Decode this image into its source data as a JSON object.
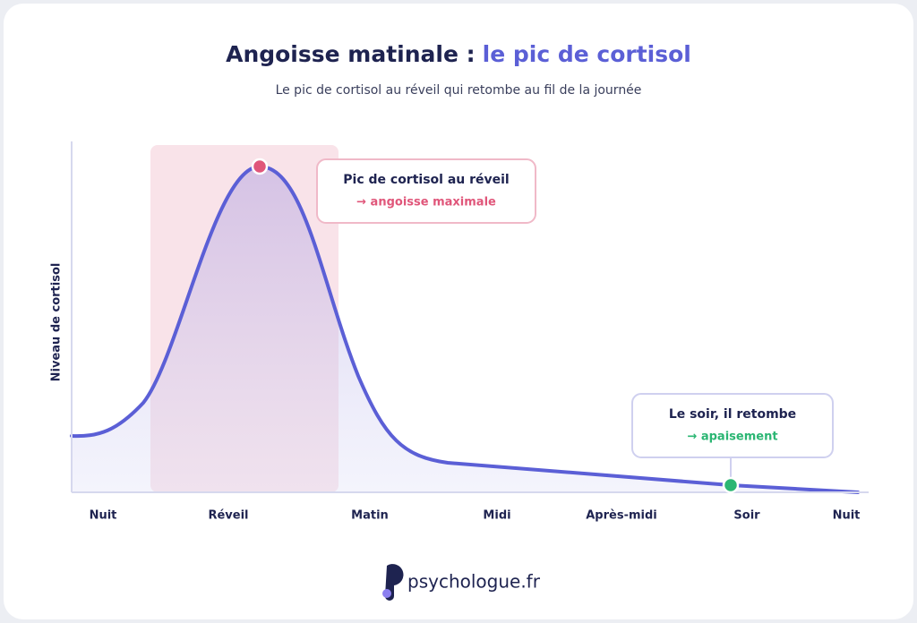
{
  "chart_data": {
    "type": "line",
    "title": "Angoisse matinale :",
    "title_highlight": "le pic de cortisol",
    "subtitle": "Le pic de cortisol au réveil qui retombe au fil de la journée",
    "y_label": "Niveau de cortisol",
    "categories": [
      "Nuit",
      "Réveil",
      "Matin",
      "Midi",
      "Après-midi",
      "Soir",
      "Nuit"
    ],
    "annotations": [
      {
        "title": "Pic de cortisol au réveil",
        "note": "→ angoisse maximale"
      },
      {
        "title": "Le soir, il retombe",
        "note": "→ apaisement"
      }
    ]
  },
  "logo": "psychologue.fr"
}
